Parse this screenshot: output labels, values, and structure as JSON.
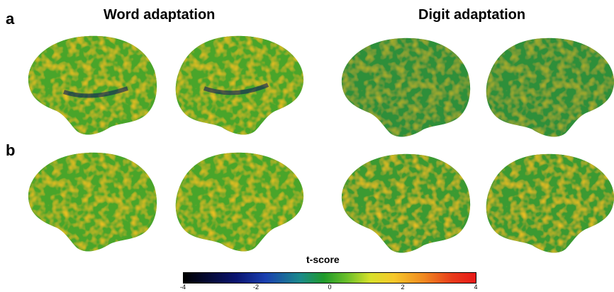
{
  "panels": {
    "a_label": "a",
    "b_label": "b"
  },
  "titles": {
    "word": "Word adaptation",
    "digit": "Digit adaptation"
  },
  "colorbar": {
    "title": "t-score",
    "ticks": [
      "-4",
      "-2",
      "0",
      "2",
      "4"
    ],
    "range": [
      -4,
      4
    ],
    "colors": [
      "#000000",
      "#0a1470",
      "#1a3fb0",
      "#1f9a2a",
      "#d8e02a",
      "#f08a20",
      "#e81818"
    ]
  }
}
